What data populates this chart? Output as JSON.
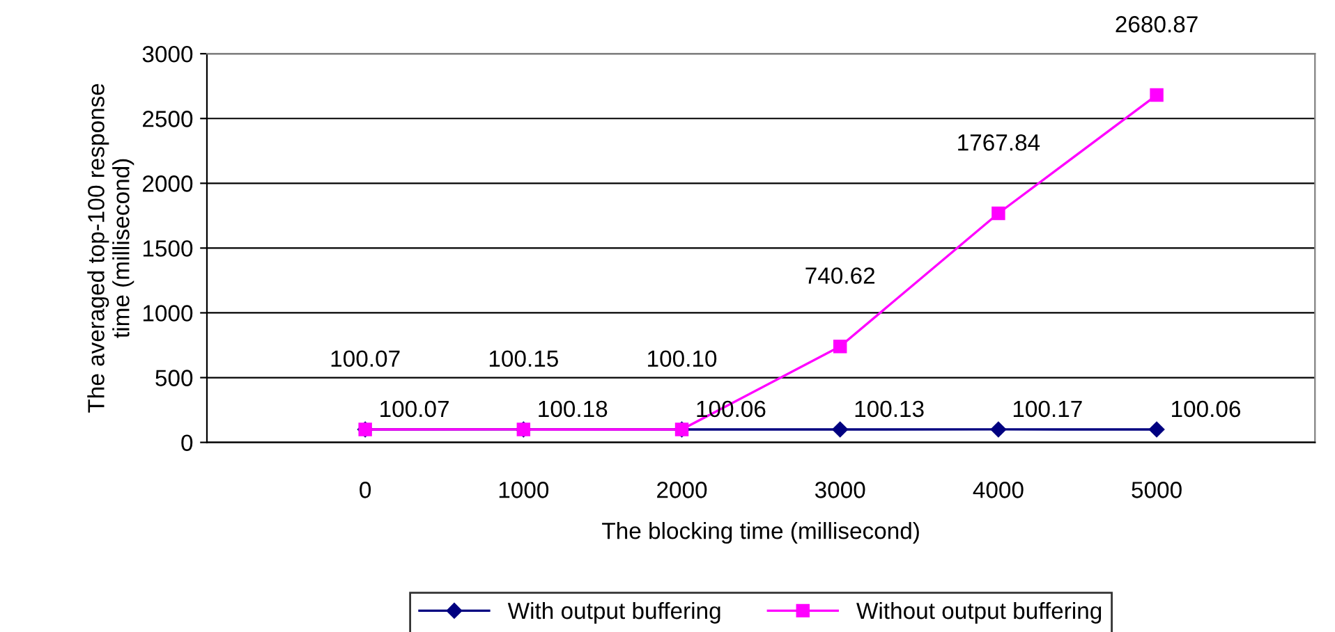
{
  "chart_data": {
    "type": "line",
    "xlabel": "The blocking time (millisecond)",
    "ylabel": "The averaged top-100 response\ntime (millisecond)",
    "categories": [
      "0",
      "1000",
      "2000",
      "3000",
      "4000",
      "5000"
    ],
    "series": [
      {
        "name": "With output buffering",
        "color": "#000080",
        "marker": "diamond",
        "values": [
          100.07,
          100.18,
          100.06,
          100.13,
          100.17,
          100.06
        ]
      },
      {
        "name": "Without output buffering",
        "color": "#ff00ff",
        "marker": "square",
        "values": [
          100.07,
          100.15,
          100.1,
          740.62,
          1767.84,
          2680.87
        ],
        "value_labels": [
          "100.07",
          "100.15",
          "100.10",
          "740.62",
          "1767.84",
          "2680.87"
        ]
      }
    ],
    "ylim": [
      0,
      3000
    ],
    "yticks": [
      0,
      500,
      1000,
      1500,
      2000,
      2500,
      3000
    ],
    "grid": "y",
    "legend": "bottom",
    "data_labels": true,
    "line_style": "solid"
  }
}
